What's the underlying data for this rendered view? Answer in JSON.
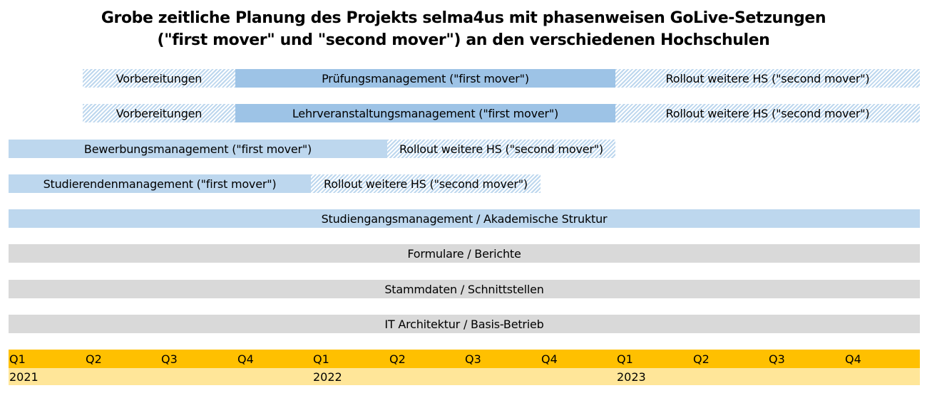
{
  "title": {
    "line1": "Grobe zeitliche Planung des Projekts selma4us mit phasenweisen GoLive-Setzungen",
    "line2": "(\"first mover\" und \"second mover\") an den verschiedenen Hochschulen"
  },
  "rows": [
    {
      "segments": [
        {
          "label": "Vorbereitungen",
          "style": "hatch"
        },
        {
          "label": "Prüfungsmanagement (\"first mover\")",
          "style": "solid-mid"
        },
        {
          "label": "Rollout weitere HS (\"second mover\")",
          "style": "hatch"
        }
      ]
    },
    {
      "segments": [
        {
          "label": "Vorbereitungen",
          "style": "hatch"
        },
        {
          "label": "Lehrveranstaltungsmanagement (\"first mover\")",
          "style": "solid-mid"
        },
        {
          "label": "Rollout weitere HS (\"second mover\")",
          "style": "hatch"
        }
      ]
    },
    {
      "segments": [
        {
          "label": "Bewerbungsmanagement (\"first mover\")",
          "style": "solid-light"
        },
        {
          "label": "Rollout weitere HS (\"second mover\")",
          "style": "hatch"
        }
      ]
    },
    {
      "segments": [
        {
          "label": "Studierendenmanagement (\"first mover\")",
          "style": "solid-light"
        },
        {
          "label": "Rollout weitere HS (\"second mover\")",
          "style": "hatch"
        }
      ]
    },
    {
      "segments": [
        {
          "label": "Studiengangsmanagement / Akademische Struktur",
          "style": "solid-light"
        }
      ]
    },
    {
      "segments": [
        {
          "label": "Formulare / Berichte",
          "style": "solid-grey"
        }
      ]
    },
    {
      "segments": [
        {
          "label": "Stammdaten / Schnittstellen",
          "style": "solid-grey"
        }
      ]
    },
    {
      "segments": [
        {
          "label": "IT Architektur / Basis-Betrieb",
          "style": "solid-grey"
        }
      ]
    }
  ],
  "timeline": {
    "quarters": [
      "Q1",
      "Q2",
      "Q3",
      "Q4",
      "Q1",
      "Q2",
      "Q3",
      "Q4",
      "Q1",
      "Q2",
      "Q3",
      "Q4"
    ],
    "years": [
      "2021",
      "2022",
      "2023"
    ]
  },
  "colors": {
    "quarter_bar": "#ffc000",
    "year_bar": "#ffe699",
    "first_mover": "#9dc3e6",
    "light_blue": "#bdd7ee",
    "grey": "#d9d9d9"
  }
}
